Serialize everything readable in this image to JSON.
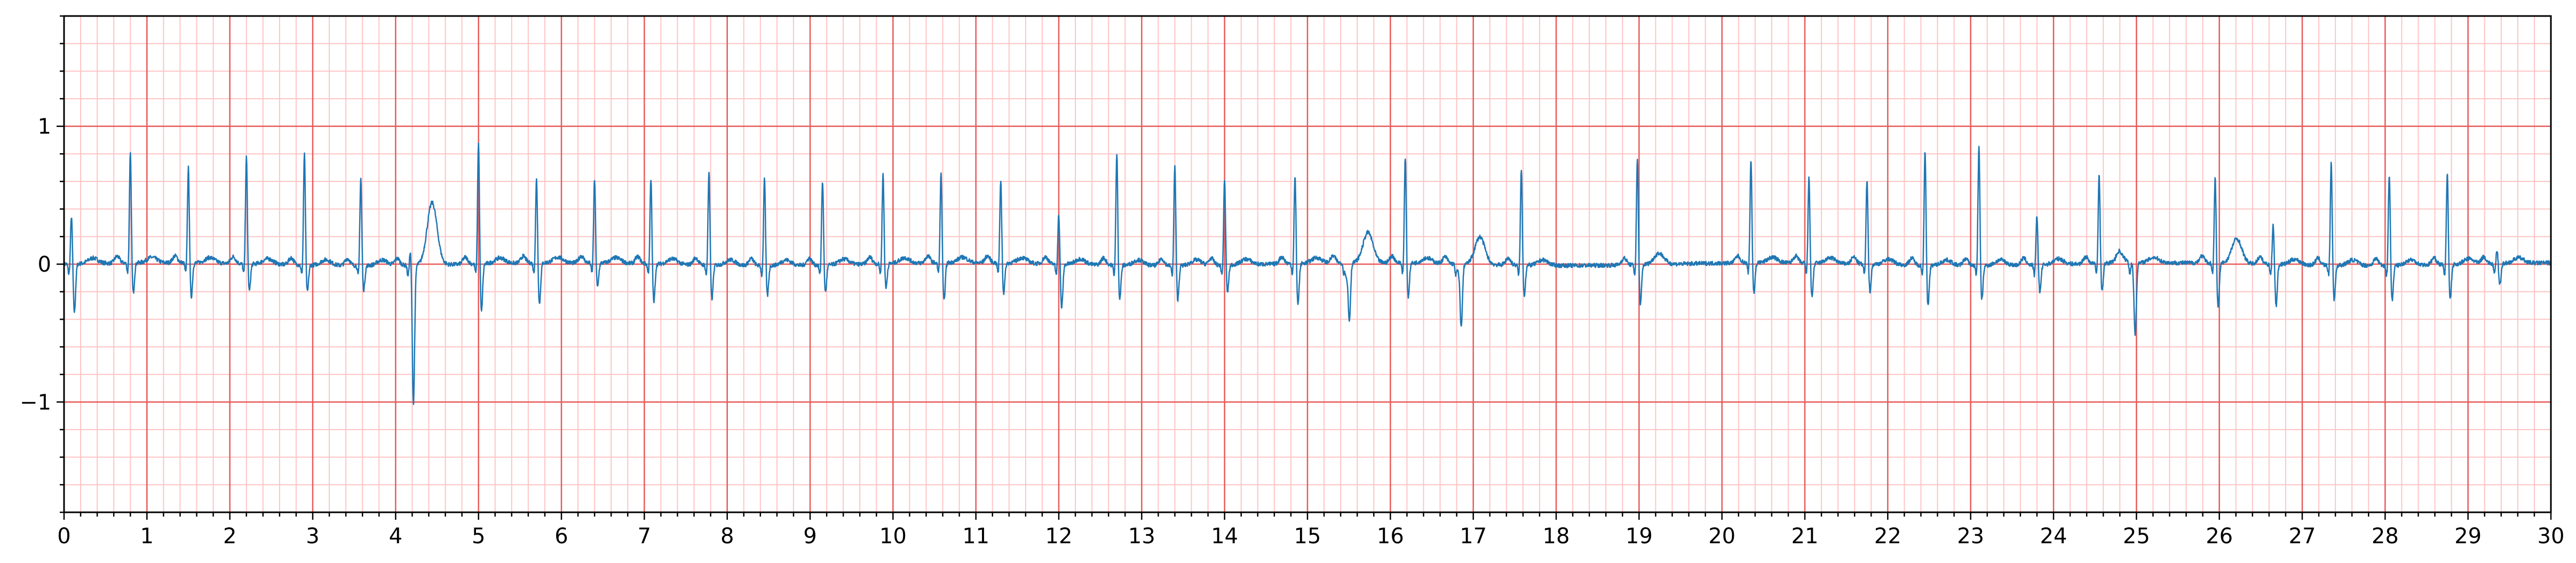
{
  "chart_data": {
    "type": "line",
    "title": "",
    "xlabel": "",
    "ylabel": "",
    "xlim": [
      0,
      30
    ],
    "ylim": [
      -1.8,
      1.8
    ],
    "grid": "ecg-paper",
    "colors": {
      "trace": "#1f77b4",
      "major_grid": "#e85a5a",
      "minor_grid": "#ffc4c4",
      "axes": "#000000"
    },
    "x_ticks": [
      0,
      1,
      2,
      3,
      4,
      5,
      6,
      7,
      8,
      9,
      10,
      11,
      12,
      13,
      14,
      15,
      16,
      17,
      18,
      19,
      20,
      21,
      22,
      23,
      24,
      25,
      26,
      27,
      28,
      29,
      30
    ],
    "y_ticks": [
      -1,
      0,
      1
    ],
    "y_tick_labels": [
      "−1",
      "0",
      "1"
    ],
    "beats": [
      {
        "t": 0.09,
        "r": 0.36,
        "s": -0.35
      },
      {
        "t": 0.8,
        "r": 0.8,
        "s": -0.22
      },
      {
        "t": 1.5,
        "r": 0.7,
        "s": -0.25
      },
      {
        "t": 2.2,
        "r": 0.78,
        "s": -0.2
      },
      {
        "t": 2.9,
        "r": 0.81,
        "s": -0.2
      },
      {
        "t": 3.58,
        "r": 0.64,
        "s": -0.18
      },
      {
        "t": 4.18,
        "r": 0.12,
        "s": -1.0,
        "t_amp": 0.45
      },
      {
        "t": 5.0,
        "r": 0.89,
        "s": -0.35
      },
      {
        "t": 5.7,
        "r": 0.62,
        "s": -0.3
      },
      {
        "t": 6.4,
        "r": 0.61,
        "s": -0.18
      },
      {
        "t": 7.08,
        "r": 0.62,
        "s": -0.28
      },
      {
        "t": 7.78,
        "r": 0.69,
        "s": -0.25
      },
      {
        "t": 8.45,
        "r": 0.64,
        "s": -0.22
      },
      {
        "t": 9.15,
        "r": 0.62,
        "s": -0.2
      },
      {
        "t": 9.88,
        "r": 0.66,
        "s": -0.18
      },
      {
        "t": 10.58,
        "r": 0.66,
        "s": -0.28
      },
      {
        "t": 11.3,
        "r": 0.61,
        "s": -0.22
      },
      {
        "t": 12.0,
        "r": 0.37,
        "s": -0.32
      },
      {
        "t": 12.7,
        "r": 0.82,
        "s": -0.25
      },
      {
        "t": 13.4,
        "r": 0.73,
        "s": -0.25
      },
      {
        "t": 14.0,
        "r": 0.62,
        "s": -0.2
      },
      {
        "t": 14.85,
        "r": 0.64,
        "s": -0.3
      },
      {
        "t": 15.47,
        "r": -0.1,
        "s": -0.42,
        "t_amp": 0.22
      },
      {
        "t": 16.18,
        "r": 0.78,
        "s": -0.25
      },
      {
        "t": 16.82,
        "r": -0.05,
        "s": -0.46,
        "t_amp": 0.2
      },
      {
        "t": 17.58,
        "r": 0.7,
        "s": -0.22
      },
      {
        "t": 18.98,
        "r": 0.78,
        "s": -0.3,
        "t_amp": 0.08
      },
      {
        "t": 20.35,
        "r": 0.76,
        "s": -0.22
      },
      {
        "t": 21.05,
        "r": 0.63,
        "s": -0.25
      },
      {
        "t": 21.75,
        "r": 0.62,
        "s": -0.2
      },
      {
        "t": 22.45,
        "r": 0.85,
        "s": -0.3
      },
      {
        "t": 23.1,
        "r": 0.88,
        "s": -0.25
      },
      {
        "t": 23.8,
        "r": 0.36,
        "s": -0.2
      },
      {
        "t": 24.55,
        "r": 0.65,
        "s": -0.2
      },
      {
        "t": 24.95,
        "r": 0.0,
        "s": -0.52
      },
      {
        "t": 25.95,
        "r": 0.63,
        "s": -0.32,
        "t_amp": 0.18
      },
      {
        "t": 26.65,
        "r": 0.3,
        "s": -0.3
      },
      {
        "t": 27.35,
        "r": 0.76,
        "s": -0.25
      },
      {
        "t": 28.05,
        "r": 0.67,
        "s": -0.25
      },
      {
        "t": 28.75,
        "r": 0.67,
        "s": -0.25
      },
      {
        "t": 29.35,
        "r": 0.1,
        "s": -0.15
      }
    ]
  }
}
